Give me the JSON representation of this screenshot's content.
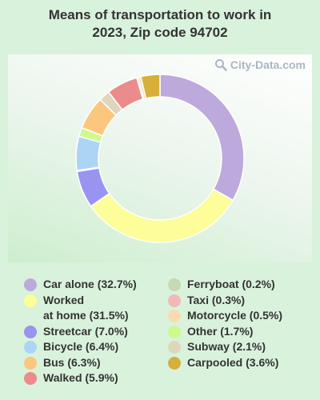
{
  "title_line1": "Means of transportation to work in",
  "title_line2": "2023, Zip code 94702",
  "watermark": "City-Data.com",
  "chart_data": {
    "type": "pie",
    "donut": true,
    "title": "Means of transportation to work in 2023, Zip code 94702",
    "unit": "%",
    "slices": [
      {
        "label": "Car alone",
        "value": 32.7,
        "color": "#bda9dc"
      },
      {
        "label": "Worked at home",
        "value": 31.5,
        "color": "#fdfd9a"
      },
      {
        "label": "Streetcar",
        "value": 7.0,
        "color": "#9894ef"
      },
      {
        "label": "Ferryboat",
        "value": 0.2,
        "color": "#c4dab0"
      },
      {
        "label": "Bicycle",
        "value": 6.4,
        "color": "#acd4f5"
      },
      {
        "label": "Other",
        "value": 1.7,
        "color": "#cff98e"
      },
      {
        "label": "Bus",
        "value": 6.3,
        "color": "#fbc77f"
      },
      {
        "label": "Subway",
        "value": 2.1,
        "color": "#dfd6bd"
      },
      {
        "label": "Walked",
        "value": 5.9,
        "color": "#eb8b8b"
      },
      {
        "label": "Taxi",
        "value": 0.3,
        "color": "#f2b8b8"
      },
      {
        "label": "Motorcycle",
        "value": 0.5,
        "color": "#fbdbb2"
      },
      {
        "label": "Carpooled",
        "value": 3.6,
        "color": "#d6b03b"
      }
    ],
    "legend": {
      "left": [
        {
          "lines": [
            "Car alone (32.7%)"
          ],
          "color": "#bda9dc"
        },
        {
          "lines": [
            "Worked",
            "at home (31.5%)"
          ],
          "color": "#fdfd9a"
        },
        {
          "lines": [
            "Streetcar (7.0%)"
          ],
          "color": "#9894ef"
        },
        {
          "lines": [
            "Bicycle (6.4%)"
          ],
          "color": "#acd4f5"
        },
        {
          "lines": [
            "Bus (6.3%)"
          ],
          "color": "#fbc77f"
        },
        {
          "lines": [
            "Walked (5.9%)"
          ],
          "color": "#eb8b8b"
        }
      ],
      "right": [
        {
          "lines": [
            "Ferryboat (0.2%)"
          ],
          "color": "#c4dab0"
        },
        {
          "lines": [
            "Taxi (0.3%)"
          ],
          "color": "#f2b8b8"
        },
        {
          "lines": [
            "Motorcycle (0.5%)"
          ],
          "color": "#fbdbb2"
        },
        {
          "lines": [
            "Other (1.7%)"
          ],
          "color": "#cff98e"
        },
        {
          "lines": [
            "Subway (2.1%)"
          ],
          "color": "#dfd6bd"
        },
        {
          "lines": [
            "Carpooled (3.6%)"
          ],
          "color": "#d6b03b"
        }
      ]
    }
  }
}
